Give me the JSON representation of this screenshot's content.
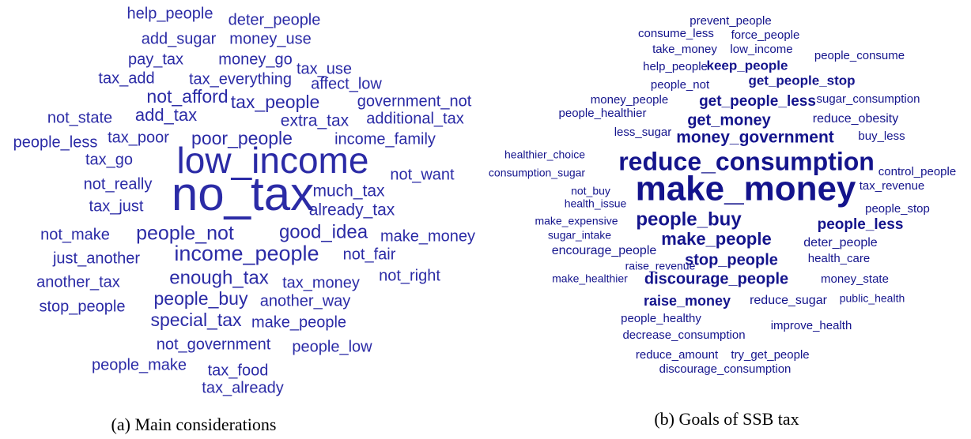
{
  "panels": [
    {
      "words": [
        "help_people",
        "deter_people",
        "add_sugar",
        "money_use",
        "pay_tax",
        "money_go",
        "tax_use",
        "tax_add",
        "tax_everything",
        "affect_low",
        "not_afford",
        "tax_people",
        "government_not",
        "not_state",
        "add_tax",
        "extra_tax",
        "additional_tax",
        "people_less",
        "tax_poor",
        "poor_people",
        "income_family",
        "tax_go",
        "low_income",
        "not_want",
        "not_really",
        "no_tax",
        "much_tax",
        "tax_just",
        "already_tax",
        "not_make",
        "people_not",
        "good_idea",
        "make_money",
        "just_another",
        "income_people",
        "not_fair",
        "another_tax",
        "enough_tax",
        "tax_money",
        "not_right",
        "stop_people",
        "people_buy",
        "another_way",
        "special_tax",
        "make_people",
        "not_government",
        "people_low",
        "people_make",
        "tax_food",
        "tax_already"
      ],
      "caption": "(a) Main considerations"
    },
    {
      "words": [
        "prevent_people",
        "consume_less",
        "force_people",
        "take_money",
        "low_income",
        "people_consume",
        "help_people",
        "keep_people",
        "people_not",
        "get_people_stop",
        "money_people",
        "get_people_less",
        "sugar_consumption",
        "people_healthier",
        "get_money",
        "reduce_obesity",
        "less_sugar",
        "money_government",
        "buy_less",
        "healthier_choice",
        "reduce_consumption",
        "consumption_sugar",
        "control_people",
        "make_money",
        "tax_revenue",
        "not_buy",
        "health_issue",
        "people_stop",
        "make_expensive",
        "people_buy",
        "people_less",
        "sugar_intake",
        "make_people",
        "deter_people",
        "encourage_people",
        "stop_people",
        "health_care",
        "raise_revenue",
        "make_healthier",
        "discourage_people",
        "money_state",
        "raise_money",
        "reduce_sugar",
        "public_health",
        "people_healthy",
        "improve_health",
        "decrease_consumption",
        "reduce_amount",
        "try_get_people",
        "discourage_consumption"
      ],
      "caption": "(b) Goals of SSB tax"
    }
  ]
}
